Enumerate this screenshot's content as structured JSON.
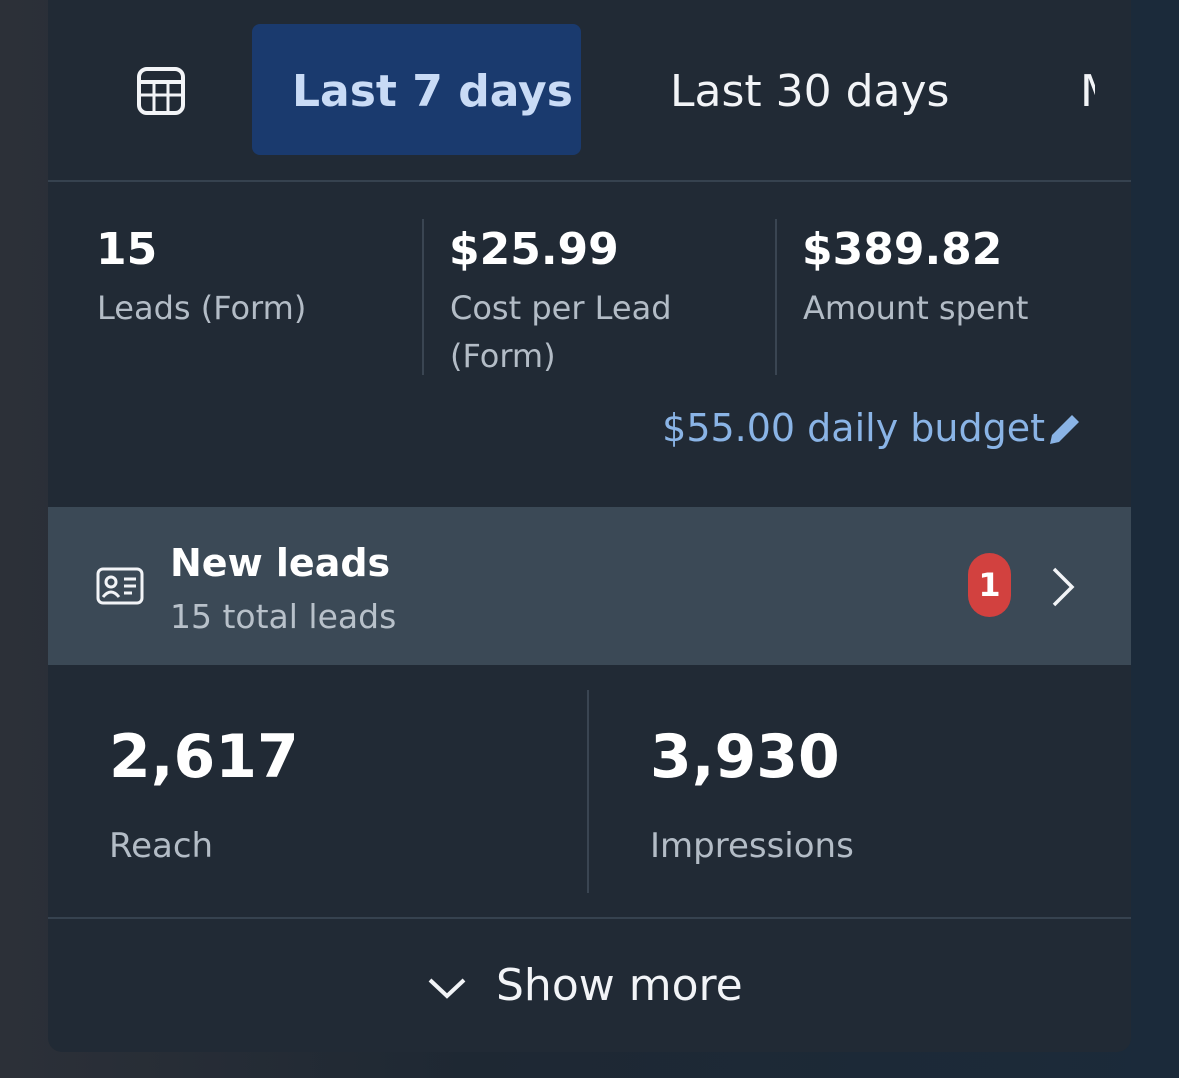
{
  "tabs": [
    "Last 7 days",
    "Last 30 days",
    "M"
  ],
  "metrics": [
    {
      "value": "15",
      "label": "Leads (Form)"
    },
    {
      "value": "$25.99",
      "label": "Cost per Lead (Form)"
    },
    {
      "value": "$389.82",
      "label": "Amount spent"
    }
  ],
  "budget": "$55.00 daily budget",
  "new_leads": {
    "title": "New leads",
    "subtitle": "15 total leads",
    "badge": "1"
  },
  "stats": [
    {
      "value": "2,617",
      "label": "Reach"
    },
    {
      "value": "3,930",
      "label": "Impressions"
    }
  ],
  "show_more": "Show more"
}
